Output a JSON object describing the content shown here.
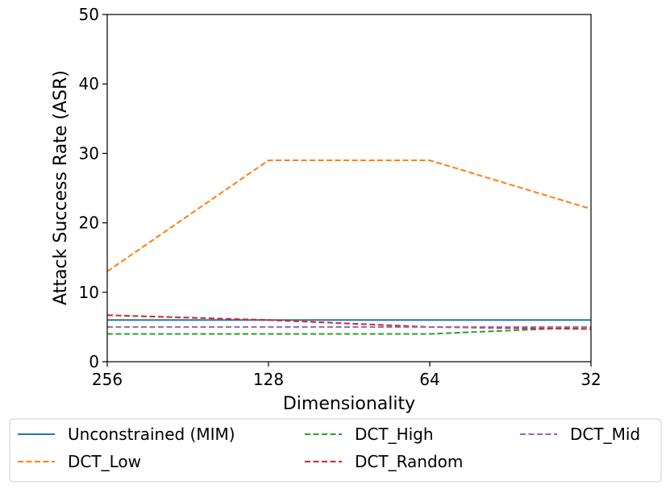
{
  "chart_data": {
    "type": "line",
    "title": "",
    "xlabel": "Dimensionality",
    "ylabel": "Attack Success Rate (ASR)",
    "categories": [
      "256",
      "128",
      "64",
      "32"
    ],
    "ylim": [
      0,
      50
    ],
    "yticks": [
      0,
      10,
      20,
      30,
      40,
      50
    ],
    "grid": false,
    "legend_position": "below-chart",
    "series": [
      {
        "name": "Unconstrained (MIM)",
        "values": [
          6,
          6,
          6,
          6
        ],
        "color": "#1f77b4",
        "style": "solid"
      },
      {
        "name": "DCT_Low",
        "values": [
          13,
          29,
          29,
          22
        ],
        "color": "#ff7f0e",
        "style": "dashed"
      },
      {
        "name": "DCT_High",
        "values": [
          4,
          4,
          4,
          5
        ],
        "color": "#2ca02c",
        "style": "dashed"
      },
      {
        "name": "DCT_Random",
        "values": [
          6.7,
          6,
          5,
          4.7
        ],
        "color": "#d62728",
        "style": "dashed"
      },
      {
        "name": "DCT_Mid",
        "values": [
          5,
          5,
          5,
          5
        ],
        "color": "#9467bd",
        "style": "dashed"
      }
    ]
  }
}
